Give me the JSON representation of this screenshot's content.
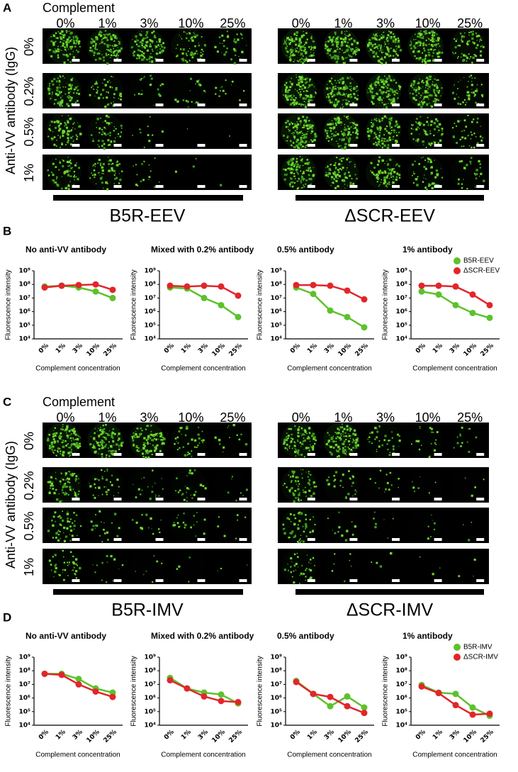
{
  "image_panels": [
    {
      "letter": "A",
      "complement_label": "Complement",
      "antibody_label": "Anti-VV antibody (IgG)",
      "rows": [
        "0%",
        "0.2%",
        "0.5%",
        "1%"
      ],
      "groups": [
        {
          "name": "B5R-EEV",
          "columns": [
            "0%",
            "1%",
            "3%",
            "10%",
            "25%"
          ]
        },
        {
          "name": "ΔSCR-EEV",
          "columns": [
            "0%",
            "1%",
            "3%",
            "10%",
            "25%"
          ]
        }
      ]
    },
    {
      "letter": "C",
      "complement_label": "Complement",
      "antibody_label": "Anti-VV antibody (IgG)",
      "rows": [
        "0%",
        "0.2%",
        "0.5%",
        "1%"
      ],
      "groups": [
        {
          "name": "B5R-IMV",
          "columns": [
            "0%",
            "1%",
            "3%",
            "10%",
            "25%"
          ]
        },
        {
          "name": "ΔSCR-IMV",
          "columns": [
            "0%",
            "1%",
            "3%",
            "10%",
            "25%"
          ]
        }
      ]
    }
  ],
  "chart_panels": [
    {
      "letter": "B"
    },
    {
      "letter": "D"
    }
  ],
  "chart_data": [
    {
      "type": "line",
      "title": "No anti-VV antibody",
      "ylabel": "Fluorescence intensity",
      "xlabel": "Complement concentration",
      "categories": [
        "0%",
        "1%",
        "3%",
        "10%",
        "25%"
      ],
      "log_y": true,
      "ylim": [
        10000,
        1000000000
      ],
      "yticks": [
        {
          "value": 10000,
          "label": "10⁴"
        },
        {
          "value": 100000,
          "label": "10⁵"
        },
        {
          "value": 1000000,
          "label": "10⁶"
        },
        {
          "value": 10000000,
          "label": "10⁷"
        },
        {
          "value": 100000000,
          "label": "10⁸"
        },
        {
          "value": 1000000000,
          "label": "10⁹"
        }
      ],
      "series": [
        {
          "color": "#5cc22c",
          "values": [
            70000000,
            80000000,
            60000000,
            30000000,
            10000000
          ]
        },
        {
          "color": "#e1262b",
          "values": [
            60000000,
            80000000,
            90000000,
            100000000,
            40000000
          ]
        }
      ]
    },
    {
      "type": "line",
      "title": "Mixed with 0.2% antibody",
      "ylabel": "Fluorescence intensity",
      "xlabel": "Complement concentration",
      "categories": [
        "0%",
        "1%",
        "3%",
        "10%",
        "25%"
      ],
      "log_y": true,
      "ylim": [
        10000,
        1000000000
      ],
      "yticks": [
        {
          "value": 10000,
          "label": "10⁴"
        },
        {
          "value": 100000,
          "label": "10⁵"
        },
        {
          "value": 1000000,
          "label": "10⁶"
        },
        {
          "value": 10000000,
          "label": "10⁷"
        },
        {
          "value": 100000000,
          "label": "10⁸"
        },
        {
          "value": 1000000000,
          "label": "10⁹"
        }
      ],
      "series": [
        {
          "color": "#5cc22c",
          "values": [
            60000000,
            50000000,
            10000000,
            3000000,
            400000
          ]
        },
        {
          "color": "#e1262b",
          "values": [
            80000000,
            70000000,
            80000000,
            70000000,
            15000000
          ]
        }
      ]
    },
    {
      "type": "line",
      "title": "0.5% antibody",
      "ylabel": "Fluorescence intensity",
      "xlabel": "Complement concentration",
      "categories": [
        "0%",
        "1%",
        "3%",
        "10%",
        "25%"
      ],
      "log_y": true,
      "ylim": [
        10000,
        1000000000
      ],
      "yticks": [
        {
          "value": 10000,
          "label": "10⁴"
        },
        {
          "value": 100000,
          "label": "10⁵"
        },
        {
          "value": 1000000,
          "label": "10⁶"
        },
        {
          "value": 10000000,
          "label": "10⁷"
        },
        {
          "value": 100000000,
          "label": "10⁸"
        },
        {
          "value": 1000000000,
          "label": "10⁹"
        }
      ],
      "series": [
        {
          "color": "#5cc22c",
          "values": [
            60000000,
            20000000,
            1200000,
            400000,
            70000
          ]
        },
        {
          "color": "#e1262b",
          "values": [
            90000000,
            90000000,
            80000000,
            35000000,
            8000000
          ]
        }
      ]
    },
    {
      "type": "line",
      "title": "1% antibody",
      "ylabel": "Fluorescence intensity",
      "xlabel": "Complement concentration",
      "categories": [
        "0%",
        "1%",
        "3%",
        "10%",
        "25%"
      ],
      "log_y": true,
      "ylim": [
        10000,
        1000000000
      ],
      "yticks": [
        {
          "value": 10000,
          "label": "10⁴"
        },
        {
          "value": 100000,
          "label": "10⁵"
        },
        {
          "value": 1000000,
          "label": "10⁶"
        },
        {
          "value": 10000000,
          "label": "10⁷"
        },
        {
          "value": 100000000,
          "label": "10⁸"
        },
        {
          "value": 1000000000,
          "label": "10⁹"
        }
      ],
      "legend": "top-right",
      "series": [
        {
          "name": "B5R-EEV",
          "color": "#5cc22c",
          "values": [
            30000000,
            18000000,
            3000000,
            800000,
            350000
          ]
        },
        {
          "name": "ΔSCR-EEV",
          "color": "#e1262b",
          "values": [
            80000000,
            80000000,
            70000000,
            18000000,
            3000000
          ]
        }
      ]
    },
    {
      "type": "line",
      "title": "No anti-VV antibody",
      "ylabel": "Fluorescence intensity",
      "xlabel": "Complement concentration",
      "categories": [
        "0%",
        "1%",
        "3%",
        "10%",
        "25%"
      ],
      "log_y": true,
      "ylim": [
        10000,
        1000000000
      ],
      "yticks": [
        {
          "value": 10000,
          "label": "10⁴"
        },
        {
          "value": 100000,
          "label": "10⁵"
        },
        {
          "value": 1000000,
          "label": "10⁶"
        },
        {
          "value": 10000000,
          "label": "10⁷"
        },
        {
          "value": 100000000,
          "label": "10⁸"
        },
        {
          "value": 1000000000,
          "label": "10⁹"
        }
      ],
      "series": [
        {
          "color": "#5cc22c",
          "values": [
            60000000,
            60000000,
            25000000,
            5000000,
            2500000
          ]
        },
        {
          "color": "#e1262b",
          "values": [
            60000000,
            50000000,
            10000000,
            3000000,
            1200000
          ]
        }
      ]
    },
    {
      "type": "line",
      "title": "Mixed with 0.2% antibody",
      "ylabel": "Fluorescence intensity",
      "xlabel": "Complement concentration",
      "categories": [
        "0%",
        "1%",
        "3%",
        "10%",
        "25%"
      ],
      "log_y": true,
      "ylim": [
        10000,
        1000000000
      ],
      "yticks": [
        {
          "value": 10000,
          "label": "10⁴"
        },
        {
          "value": 100000,
          "label": "10⁵"
        },
        {
          "value": 1000000,
          "label": "10⁶"
        },
        {
          "value": 10000000,
          "label": "10⁷"
        },
        {
          "value": 100000000,
          "label": "10⁸"
        },
        {
          "value": 1000000000,
          "label": "10⁹"
        }
      ],
      "series": [
        {
          "color": "#5cc22c",
          "values": [
            30000000,
            5000000,
            2500000,
            1800000,
            400000
          ]
        },
        {
          "color": "#e1262b",
          "values": [
            20000000,
            5000000,
            1300000,
            600000,
            500000
          ]
        }
      ]
    },
    {
      "type": "line",
      "title": "0.5% antibody",
      "ylabel": "Fluorescence intensity",
      "xlabel": "Complement concentration",
      "categories": [
        "0%",
        "1%",
        "3%",
        "10%",
        "25%"
      ],
      "log_y": true,
      "ylim": [
        10000,
        1000000000
      ],
      "yticks": [
        {
          "value": 10000,
          "label": "10⁴"
        },
        {
          "value": 100000,
          "label": "10⁵"
        },
        {
          "value": 1000000,
          "label": "10⁶"
        },
        {
          "value": 10000000,
          "label": "10⁷"
        },
        {
          "value": 100000000,
          "label": "10⁸"
        },
        {
          "value": 1000000000,
          "label": "10⁹"
        }
      ],
      "series": [
        {
          "color": "#5cc22c",
          "values": [
            18000000,
            2000000,
            250000,
            1300000,
            200000
          ]
        },
        {
          "color": "#e1262b",
          "values": [
            15000000,
            2000000,
            1200000,
            250000,
            80000
          ]
        }
      ]
    },
    {
      "type": "line",
      "title": "1% antibody",
      "ylabel": "Fluorescence intensity",
      "xlabel": "Complement concentration",
      "categories": [
        "0%",
        "1%",
        "3%",
        "10%",
        "25%"
      ],
      "log_y": true,
      "ylim": [
        10000,
        1000000000
      ],
      "yticks": [
        {
          "value": 10000,
          "label": "10⁴"
        },
        {
          "value": 100000,
          "label": "10⁵"
        },
        {
          "value": 1000000,
          "label": "10⁶"
        },
        {
          "value": 10000000,
          "label": "10⁷"
        },
        {
          "value": 100000000,
          "label": "10⁸"
        },
        {
          "value": 1000000000,
          "label": "10⁹"
        }
      ],
      "legend": "top-right",
      "series": [
        {
          "name": "B5R-IMV",
          "color": "#5cc22c",
          "values": [
            9000000,
            2500000,
            2000000,
            200000,
            50000
          ]
        },
        {
          "name": "ΔSCR-IMV",
          "color": "#e1262b",
          "values": [
            7000000,
            2300000,
            300000,
            60000,
            70000
          ]
        }
      ]
    }
  ]
}
